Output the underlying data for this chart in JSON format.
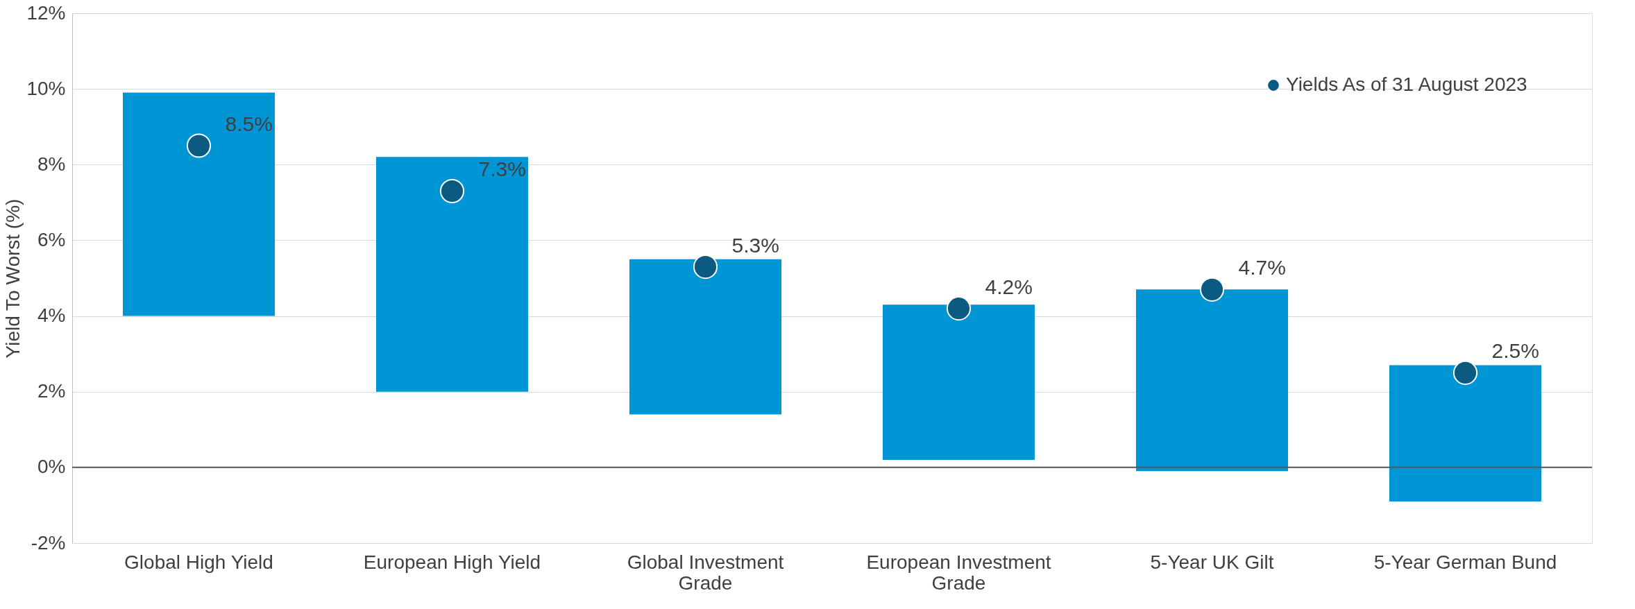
{
  "chart_data": {
    "type": "bar",
    "ylabel": "Yield To Worst (%)",
    "categories": [
      "Global High Yield",
      "European High Yield",
      "Global Investment Grade",
      "European Investment Grade",
      "5-Year UK Gilt",
      "5-Year German Bund"
    ],
    "base": [
      4.0,
      2.0,
      1.4,
      0.2,
      -0.1,
      -0.9
    ],
    "values": [
      5.9,
      6.2,
      4.1,
      4.1,
      4.8,
      3.6
    ],
    "color": "#0095d5",
    "series": [
      {
        "type": "scatter",
        "name": "Yields As of 31 August 2023",
        "color": "#0a5a82",
        "values": [
          8.5,
          7.3,
          5.3,
          4.2,
          4.7,
          2.5
        ],
        "value_labels": [
          "8.5%",
          "7.3%",
          "5.3%",
          "4.2%",
          "4.7%",
          "2.5%"
        ]
      }
    ],
    "ylim": [
      -2,
      12
    ],
    "yticks": [
      {
        "value": -2,
        "label": "-2%"
      },
      {
        "value": 0,
        "label": "0%"
      },
      {
        "value": 2,
        "label": "2%"
      },
      {
        "value": 4,
        "label": "4%"
      },
      {
        "value": 6,
        "label": "6%"
      },
      {
        "value": 8,
        "label": "8%"
      },
      {
        "value": 10,
        "label": "10%"
      },
      {
        "value": 12,
        "label": "12%"
      }
    ],
    "ref_lines": [
      {
        "axis": "y",
        "value": 0,
        "color": "#595959"
      }
    ],
    "grid": "y",
    "legend": "top right"
  }
}
